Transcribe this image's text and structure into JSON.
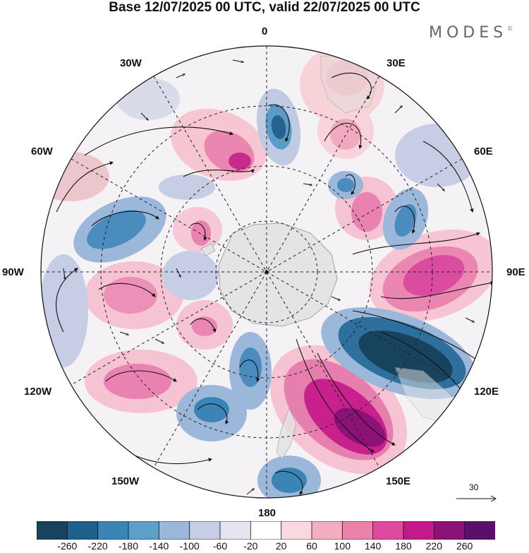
{
  "title": "Base 12/07/2025 00 UTC, valid 22/07/2025 00 UTC",
  "logo": "MODES",
  "longitude_labels": {
    "lon_0": "0",
    "lon_30e": "30E",
    "lon_60e": "60E",
    "lon_90e": "90E",
    "lon_120e": "120E",
    "lon_150e": "150E",
    "lon_180": "180",
    "lon_150w": "150W",
    "lon_120w": "120W",
    "lon_90w": "90W",
    "lon_60w": "60W",
    "lon_30w": "30W"
  },
  "reference_vector": {
    "label": "30"
  },
  "colorbar": {
    "colors": [
      "#17435f",
      "#1f5f8b",
      "#3b84b6",
      "#5d9fcb",
      "#9bb8da",
      "#c6cde4",
      "#e6e4ef",
      "#ffffff",
      "#f9d9df",
      "#f3aec2",
      "#ea82ac",
      "#dd4aa0",
      "#c21a8a",
      "#8b1277",
      "#5a0f6b"
    ],
    "labels": [
      "-260",
      "-220",
      "-180",
      "-140",
      "-100",
      "-60",
      "-20",
      "20",
      "60",
      "100",
      "140",
      "180",
      "220",
      "260"
    ]
  },
  "map": {
    "type": "polar-stereographic",
    "hemisphere": "south",
    "projection": "south-polar-stereographic",
    "land_color": "#e6e6e6",
    "graticule": "dashed",
    "field": "anomaly"
  }
}
